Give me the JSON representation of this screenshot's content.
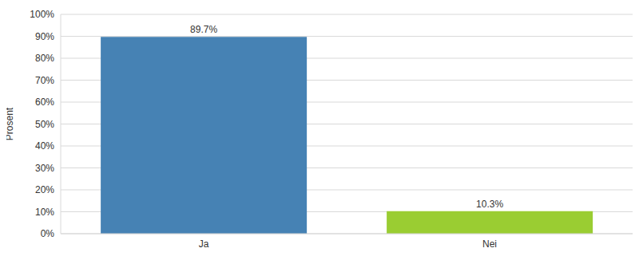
{
  "chart_data": {
    "type": "bar",
    "y_label": "Prosent",
    "categories": [
      "Ja",
      "Nei"
    ],
    "values": [
      89.7,
      10.3
    ],
    "value_labels": [
      "89.7%",
      "10.3%"
    ],
    "colors": [
      "#4682b4",
      "#9acd32"
    ],
    "ylim": [
      0,
      100
    ],
    "yticks": [
      {
        "value": 0,
        "label": "0%"
      },
      {
        "value": 10,
        "label": "10%"
      },
      {
        "value": 20,
        "label": "20%"
      },
      {
        "value": 30,
        "label": "30%"
      },
      {
        "value": 40,
        "label": "40%"
      },
      {
        "value": 50,
        "label": "50%"
      },
      {
        "value": 60,
        "label": "60%"
      },
      {
        "value": 70,
        "label": "70%"
      },
      {
        "value": 80,
        "label": "80%"
      },
      {
        "value": 90,
        "label": "90%"
      },
      {
        "value": 100,
        "label": "100%"
      }
    ],
    "grid": true,
    "data_labels": true
  }
}
